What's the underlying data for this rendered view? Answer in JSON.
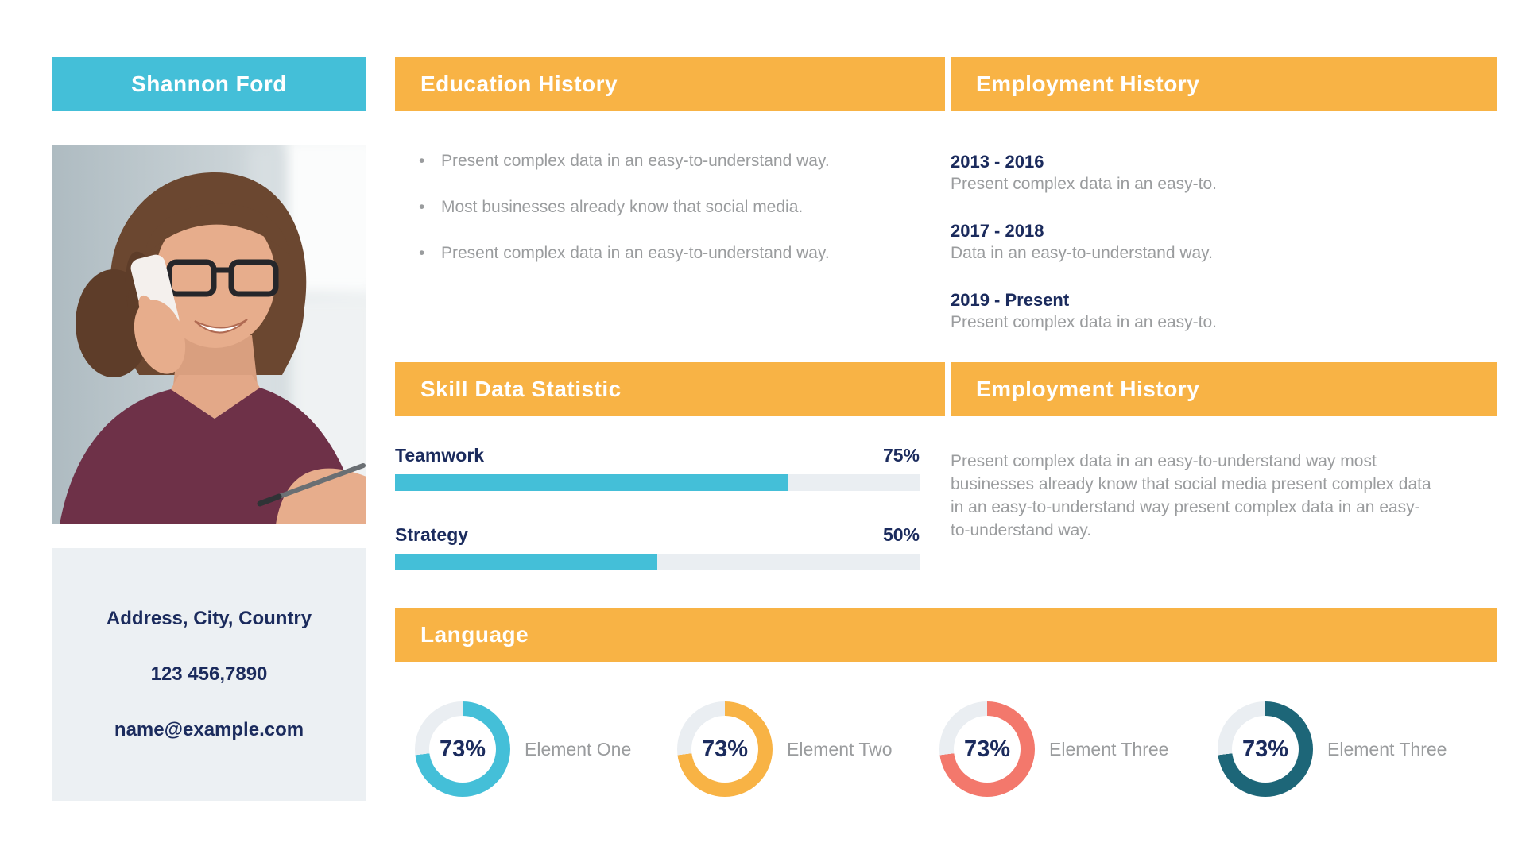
{
  "sidebar": {
    "name": "Shannon Ford",
    "photo_alt": "Smiling woman with glasses and maroon shirt talking on a white phone while holding a pen",
    "contact": {
      "address": "Address, City, Country",
      "phone": "123 456,7890",
      "email": "name@example.com"
    }
  },
  "education": {
    "title": "Education History",
    "bullet_glyph": "•",
    "bullets": [
      "Present complex data in an easy-to-understand way.",
      "Most businesses already know that social media.",
      "Present complex data in an easy-to-understand way."
    ]
  },
  "skills": {
    "title": "Skill Data Statistic",
    "items": [
      {
        "label": "Teamwork",
        "percent_label": "75%",
        "value": 75
      },
      {
        "label": "Strategy",
        "percent_label": "50%",
        "value": 50
      }
    ]
  },
  "employment": {
    "title": "Employment History",
    "entries": [
      {
        "period": "2013 - 2016",
        "description": "Present complex data in an easy-to."
      },
      {
        "period": "2017 - 2018",
        "description": "Data in an easy-to-understand way."
      },
      {
        "period": "2019 - Present",
        "description": "Present complex data in an easy-to."
      }
    ]
  },
  "employment_summary": {
    "title": "Employment History",
    "paragraph": "Present complex data in an easy-to-understand way most businesses already know that social media present complex data in an easy-to-understand way present complex data in an easy-to-understand way."
  },
  "language": {
    "title": "Language",
    "items": [
      {
        "label": "Element One",
        "percent_label": "73%",
        "value": 73,
        "color": "#44BFD8"
      },
      {
        "label": "Element Two",
        "percent_label": "73%",
        "value": 73,
        "color": "#F8B345"
      },
      {
        "label": "Element Three",
        "percent_label": "73%",
        "value": 73,
        "color": "#F3786C"
      },
      {
        "label": "Element Three",
        "percent_label": "73%",
        "value": 73,
        "color": "#1D6678"
      }
    ]
  },
  "colors": {
    "accent_teal": "#44BFD8",
    "accent_orange": "#F8B345",
    "navy_text": "#1B2B5D",
    "gray_text": "#9A9C9E",
    "track_gray": "#EAEEF2",
    "contact_bg": "#ECF0F3",
    "coral": "#F3786C",
    "dark_teal": "#1D6678"
  }
}
